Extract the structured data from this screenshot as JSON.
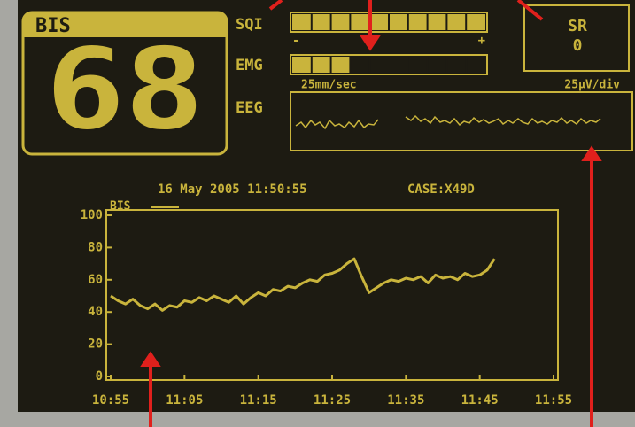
{
  "bis_panel": {
    "label": "BIS",
    "value": "68"
  },
  "indicators": {
    "bar_range": [
      0,
      100
    ],
    "sqi": {
      "label": "SQI",
      "value": 100,
      "min_label": "-",
      "max_label": "+"
    },
    "emg": {
      "label": "EMG",
      "value": 30,
      "speed": "25mm/sec"
    },
    "eeg": {
      "label": "EEG",
      "scale": "25µV/div"
    }
  },
  "sr": {
    "label": "SR",
    "value": "0"
  },
  "trend_header": {
    "date": "16 May 2005 11:50:55",
    "case": "CASE:X49D"
  },
  "chart_data": {
    "type": "line",
    "series": [
      {
        "name": "BIS",
        "color": "#c9b43c",
        "values": [
          50,
          47,
          45,
          48,
          44,
          42,
          45,
          41,
          44,
          43,
          47,
          46,
          49,
          47,
          50,
          48,
          46,
          50,
          45,
          49,
          52,
          50,
          54,
          53,
          56,
          55,
          58,
          60,
          59,
          63,
          64,
          66,
          70,
          73,
          62,
          52,
          55,
          58,
          60,
          59,
          61,
          60,
          62,
          58,
          63,
          61,
          62,
          60,
          64,
          62,
          63,
          66,
          73
        ]
      }
    ],
    "x": [
      0,
      1,
      2,
      3,
      4,
      5,
      6,
      7,
      8,
      9,
      10,
      11,
      12,
      13,
      14,
      15,
      16,
      17,
      18,
      19,
      20,
      21,
      22,
      23,
      24,
      25,
      26,
      27,
      28,
      29,
      30,
      31,
      32,
      33,
      34,
      35,
      36,
      37,
      38,
      39,
      40,
      41,
      42,
      43,
      44,
      45,
      46,
      47,
      48,
      49,
      50,
      51,
      52
    ],
    "xlim": [
      0,
      60
    ],
    "xticks": [
      {
        "value": 0,
        "label": "10:55"
      },
      {
        "value": 10,
        "label": "11:05"
      },
      {
        "value": 20,
        "label": "11:15"
      },
      {
        "value": 30,
        "label": "11:25"
      },
      {
        "value": 40,
        "label": "11:35"
      },
      {
        "value": 50,
        "label": "11:45"
      },
      {
        "value": 60,
        "label": "11:55"
      }
    ],
    "ylim": [
      0,
      100
    ],
    "yticks": [
      0,
      20,
      40,
      60,
      80,
      100
    ]
  }
}
